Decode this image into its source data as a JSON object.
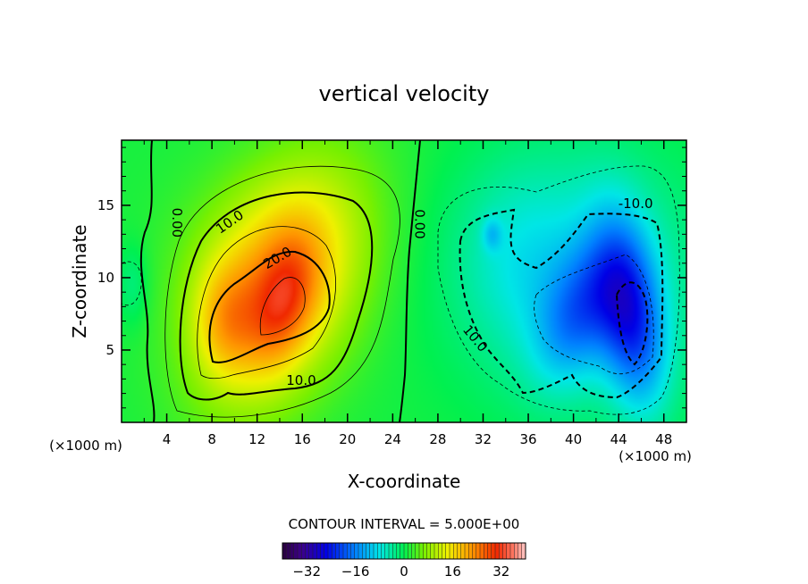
{
  "chart_data": {
    "type": "heatmap",
    "title": "vertical velocity",
    "xlabel": "X-coordinate",
    "ylabel": "Z-coordinate",
    "x_units": "(×1000 m)",
    "z_units": "(×1000 m)",
    "xlim": [
      0,
      50
    ],
    "ylim": [
      0,
      19.5
    ],
    "x_ticks": [
      4,
      8,
      12,
      16,
      20,
      24,
      28,
      32,
      36,
      40,
      44,
      48
    ],
    "x_tick_labels": [
      "4",
      "8",
      "12",
      "16",
      "20",
      "24",
      "28",
      "32",
      "36",
      "40",
      "44",
      "48"
    ],
    "y_ticks": [
      5,
      10,
      15
    ],
    "y_tick_labels": [
      "5",
      "10",
      "15"
    ],
    "contour_interval_label": "CONTOUR INTERVAL = 5.000E+00",
    "contour_interval": 5.0,
    "colorbar": {
      "range": [
        -40,
        40
      ],
      "ticks": [
        -32,
        -16,
        0,
        16,
        32
      ],
      "tick_labels": [
        "−32",
        "−16",
        "0",
        "16",
        "32"
      ]
    },
    "contour_labels": [
      {
        "text": "0.00",
        "x": 4.5,
        "y": 13.8
      },
      {
        "text": "10.0",
        "x": 9.8,
        "y": 13.6
      },
      {
        "text": "20.0",
        "x": 14.0,
        "y": 11.1
      },
      {
        "text": "10.0",
        "x": 15.9,
        "y": 2.6
      },
      {
        "text": "0.00",
        "x": 26.0,
        "y": 13.7
      },
      {
        "text": "-10.0",
        "x": 45.5,
        "y": 14.8
      },
      {
        "text": "10.0",
        "x": 31.0,
        "y": 5.6
      }
    ],
    "field_features": [
      {
        "kind": "updraft",
        "center_x": 14.5,
        "center_z": 8.0,
        "peak": 28
      },
      {
        "kind": "updraft",
        "center_x": 9.0,
        "center_z": 7.0,
        "peak": 24
      },
      {
        "kind": "downdraft",
        "center_x": 45.0,
        "center_z": 7.5,
        "peak": -22
      },
      {
        "kind": "downdraft",
        "center_x": 40.5,
        "center_z": 7.0,
        "peak": -15
      }
    ]
  }
}
